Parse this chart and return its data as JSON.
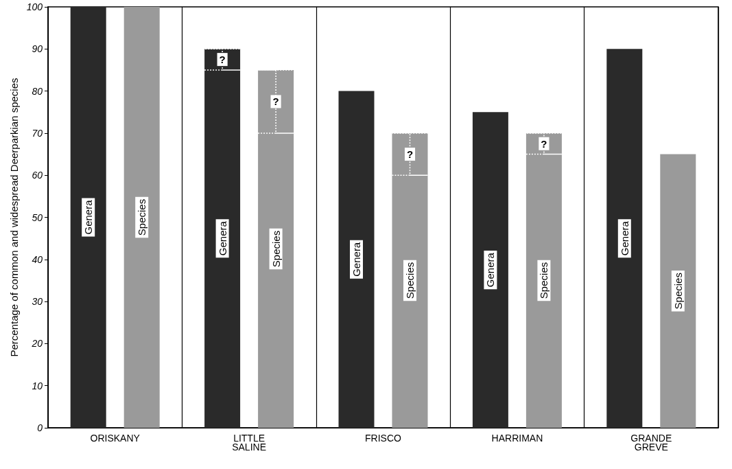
{
  "chart_data": {
    "type": "bar",
    "ylabel": "Percentage of common and widespread Deerparkian species",
    "categories": [
      "ORISKANY",
      "LITTLE\nSALINE",
      "FRISCO",
      "HARRIMAN",
      "GRANDE\nGREVE"
    ],
    "series": [
      {
        "name": "Genera",
        "color": "#2a2a2a",
        "values": [
          100,
          90,
          80,
          75,
          90
        ],
        "errors": [
          null,
          [
            85,
            90
          ],
          null,
          null,
          null
        ],
        "value_labels": [
          null,
          "?",
          null,
          null,
          null
        ]
      },
      {
        "name": "Species",
        "color": "#9a9a9a",
        "values": [
          100,
          85,
          70,
          70,
          65
        ],
        "errors": [
          null,
          [
            70,
            85
          ],
          [
            60,
            70
          ],
          [
            65,
            70
          ],
          null
        ],
        "value_labels": [
          null,
          "?",
          "?",
          "?",
          null
        ]
      }
    ],
    "ylim": [
      0,
      100
    ],
    "yticks": [
      0,
      10,
      20,
      30,
      40,
      50,
      60,
      70,
      80,
      90,
      100
    ],
    "grid": "x",
    "legend": false
  }
}
